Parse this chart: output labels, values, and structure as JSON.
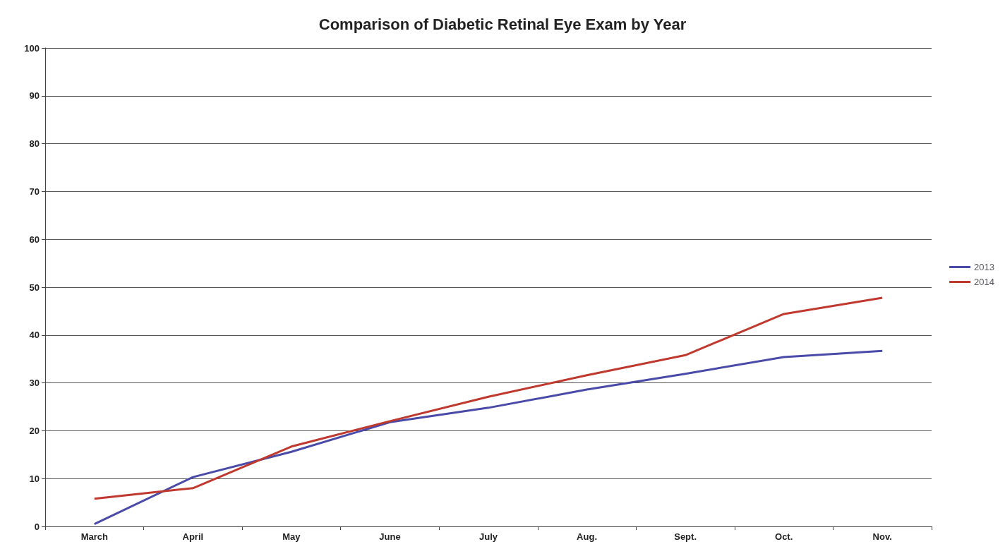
{
  "chart_data": {
    "type": "line",
    "title": "Comparison of Diabetic Retinal Eye Exam by Year",
    "categories": [
      "March",
      "April",
      "May",
      "June",
      "July",
      "Aug.",
      "Sept.",
      "Oct.",
      "Nov."
    ],
    "series": [
      {
        "name": "2013",
        "color": "#4a4ba8",
        "values": [
          0.5,
          10.3,
          15.6,
          21.8,
          24.8,
          28.6,
          31.9,
          35.4,
          36.7
        ]
      },
      {
        "name": "2014",
        "color": "#c0392f",
        "values": [
          5.8,
          8.0,
          16.7,
          22.0,
          27.1,
          31.6,
          35.8,
          44.4,
          47.8
        ]
      }
    ],
    "ylim": [
      0,
      100
    ],
    "yticks": [
      0,
      10,
      20,
      30,
      40,
      50,
      60,
      70,
      80,
      90,
      100
    ],
    "grid": "y",
    "legend": "right",
    "marker": "none",
    "line_style": "solid"
  }
}
